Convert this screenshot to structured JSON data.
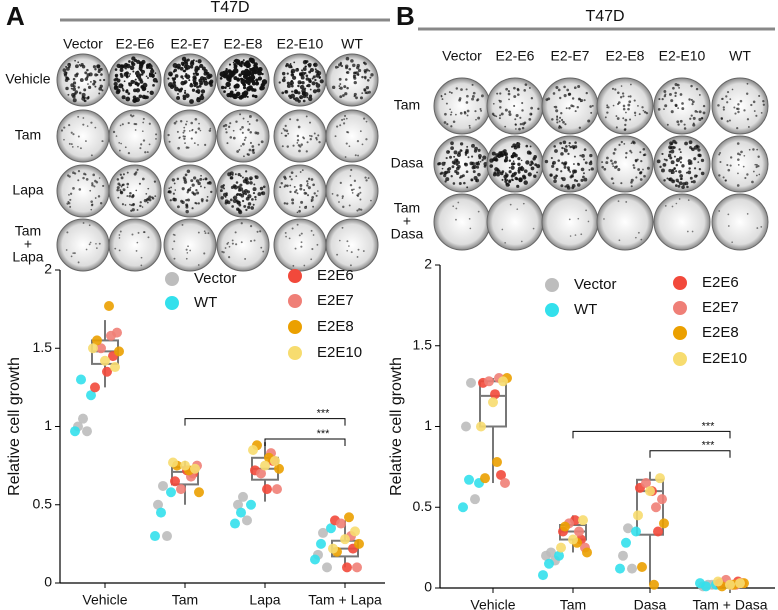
{
  "panels": [
    {
      "label": "A",
      "title": "T47D",
      "columns": [
        "Vector",
        "E2-E6",
        "E2-E7",
        "E2-E8",
        "E2-E10",
        "WT"
      ],
      "rows": [
        [
          "Vehicle"
        ],
        [
          "Tam"
        ],
        [
          "Lapa"
        ],
        [
          "Tam",
          "+",
          "Lapa"
        ]
      ]
    },
    {
      "label": "B",
      "title": "T47D",
      "columns": [
        "Vector",
        "E2-E6",
        "E2-E7",
        "E2-E8",
        "E2-E10",
        "WT"
      ],
      "rows": [
        [
          "Tam"
        ],
        [
          "Dasa"
        ],
        [
          "Tam",
          "+",
          "Dasa"
        ]
      ]
    }
  ],
  "chart_data": [
    {
      "type": "boxscatter",
      "ylabel": "Relative cell growth",
      "categories": [
        "Vehicle",
        "Tam",
        "Lapa",
        "Tam + Lapa"
      ],
      "ylim": [
        0,
        2
      ],
      "yticks": [
        0,
        0.5,
        1.0,
        1.5,
        2.0
      ],
      "series": [
        {
          "name": "Vector",
          "color": "#bdbdbd",
          "values": [
            [
              1.05,
              1.0,
              0.97
            ],
            [
              0.62,
              0.5,
              0.3
            ],
            [
              0.55,
              0.5,
              0.4
            ],
            [
              0.32,
              0.18,
              0.1
            ]
          ]
        },
        {
          "name": "WT",
          "color": "#33e0ec",
          "values": [
            [
              1.2,
              1.3,
              0.97
            ],
            [
              0.58,
              0.45,
              0.3
            ],
            [
              0.5,
              0.45,
              0.38
            ],
            [
              0.35,
              0.25,
              0.15
            ]
          ]
        },
        {
          "name": "E2E6",
          "color": "#f2493b",
          "values": [
            [
              1.25,
              1.35,
              1.45
            ],
            [
              0.65,
              0.72,
              0.7
            ],
            [
              0.72,
              0.6,
              0.78
            ],
            [
              0.4,
              0.1,
              0.22
            ]
          ]
        },
        {
          "name": "E2E7",
          "color": "#ef7f77",
          "values": [
            [
              1.5,
              1.58,
              1.6
            ],
            [
              0.6,
              0.68,
              0.75
            ],
            [
              0.7,
              0.83,
              0.6
            ],
            [
              0.38,
              0.3,
              0.1
            ]
          ]
        },
        {
          "name": "E2E8",
          "color": "#eba000",
          "values": [
            [
              1.77,
              1.55,
              1.48
            ],
            [
              0.72,
              0.75,
              0.58
            ],
            [
              0.8,
              0.88,
              0.73
            ],
            [
              0.42,
              0.2,
              0.25
            ]
          ]
        },
        {
          "name": "E2E10",
          "color": "#f7dc6f",
          "values": [
            [
              1.38,
              1.42,
              1.5
            ],
            [
              0.73,
              0.75,
              0.77
            ],
            [
              0.78,
              0.75,
              0.85
            ],
            [
              0.33,
              0.28,
              0.22
            ]
          ]
        }
      ],
      "boxes": [
        {
          "min": 1.25,
          "q1": 1.4,
          "median": 1.48,
          "q3": 1.55,
          "max": 1.68
        },
        {
          "min": 0.5,
          "q1": 0.63,
          "median": 0.71,
          "q3": 0.74,
          "max": 0.78
        },
        {
          "min": 0.52,
          "q1": 0.66,
          "median": 0.73,
          "q3": 0.8,
          "max": 0.9
        },
        {
          "min": 0.1,
          "q1": 0.17,
          "median": 0.22,
          "q3": 0.27,
          "max": 0.4
        }
      ],
      "brackets": [
        {
          "between": [
            "Tam",
            "Tam + Lapa"
          ],
          "y": 1.05,
          "label": "***"
        },
        {
          "between": [
            "Lapa",
            "Tam + Lapa"
          ],
          "y": 0.92,
          "label": "***"
        }
      ]
    },
    {
      "type": "boxscatter",
      "ylabel": "Relative cell growth",
      "categories": [
        "Vehicle",
        "Tam",
        "Dasa",
        "Tam + Dasa"
      ],
      "ylim": [
        0,
        2
      ],
      "yticks": [
        0,
        0.5,
        1.0,
        1.5,
        2.0
      ],
      "series": [
        {
          "name": "Vector",
          "color": "#bdbdbd",
          "values": [
            [
              1.27,
              1.0,
              0.55
            ],
            [
              0.22,
              0.2,
              0.17
            ],
            [
              0.37,
              0.2,
              0.12
            ],
            [
              0.02,
              0.01,
              0.02
            ]
          ]
        },
        {
          "name": "WT",
          "color": "#33e0ec",
          "values": [
            [
              0.65,
              0.67,
              0.5
            ],
            [
              0.2,
              0.15,
              0.08
            ],
            [
              0.35,
              0.28,
              0.12
            ],
            [
              0.02,
              0.01,
              0.03
            ]
          ]
        },
        {
          "name": "E2E6",
          "color": "#f2493b",
          "values": [
            [
              1.27,
              1.2,
              0.7
            ],
            [
              0.35,
              0.42,
              0.3
            ],
            [
              0.62,
              0.6,
              0.35
            ],
            [
              0.03,
              0.02,
              0.04
            ]
          ]
        },
        {
          "name": "E2E7",
          "color": "#ef7f77",
          "values": [
            [
              1.28,
              1.3,
              0.65
            ],
            [
              0.4,
              0.35,
              0.25
            ],
            [
              0.65,
              0.5,
              0.55
            ],
            [
              0.05,
              0.02,
              0.03
            ]
          ]
        },
        {
          "name": "E2E8",
          "color": "#eba000",
          "values": [
            [
              0.78,
              0.68,
              1.3
            ],
            [
              0.28,
              0.38,
              0.22
            ],
            [
              0.02,
              0.13,
              0.4
            ],
            [
              0.02,
              0.01,
              0.03
            ]
          ]
        },
        {
          "name": "E2E10",
          "color": "#f7dc6f",
          "values": [
            [
              1.28,
              1.15,
              1.0
            ],
            [
              0.42,
              0.3,
              0.25
            ],
            [
              0.68,
              0.6,
              0.45
            ],
            [
              0.03,
              0.02,
              0.04
            ]
          ]
        }
      ],
      "boxes": [
        {
          "min": 0.65,
          "q1": 1.0,
          "median": 1.19,
          "q3": 1.28,
          "max": 1.3
        },
        {
          "min": 0.22,
          "q1": 0.3,
          "median": 0.35,
          "q3": 0.39,
          "max": 0.45
        },
        {
          "min": 0.02,
          "q1": 0.33,
          "median": 0.6,
          "q3": 0.67,
          "max": 0.72
        },
        {
          "min": 0,
          "q1": 0.01,
          "median": 0.02,
          "q3": 0.03,
          "max": 0.05
        }
      ],
      "brackets": [
        {
          "between": [
            "Tam",
            "Tam + Dasa"
          ],
          "y": 0.97,
          "label": "***"
        },
        {
          "between": [
            "Dasa",
            "Tam + Dasa"
          ],
          "y": 0.85,
          "label": "***"
        }
      ]
    }
  ]
}
